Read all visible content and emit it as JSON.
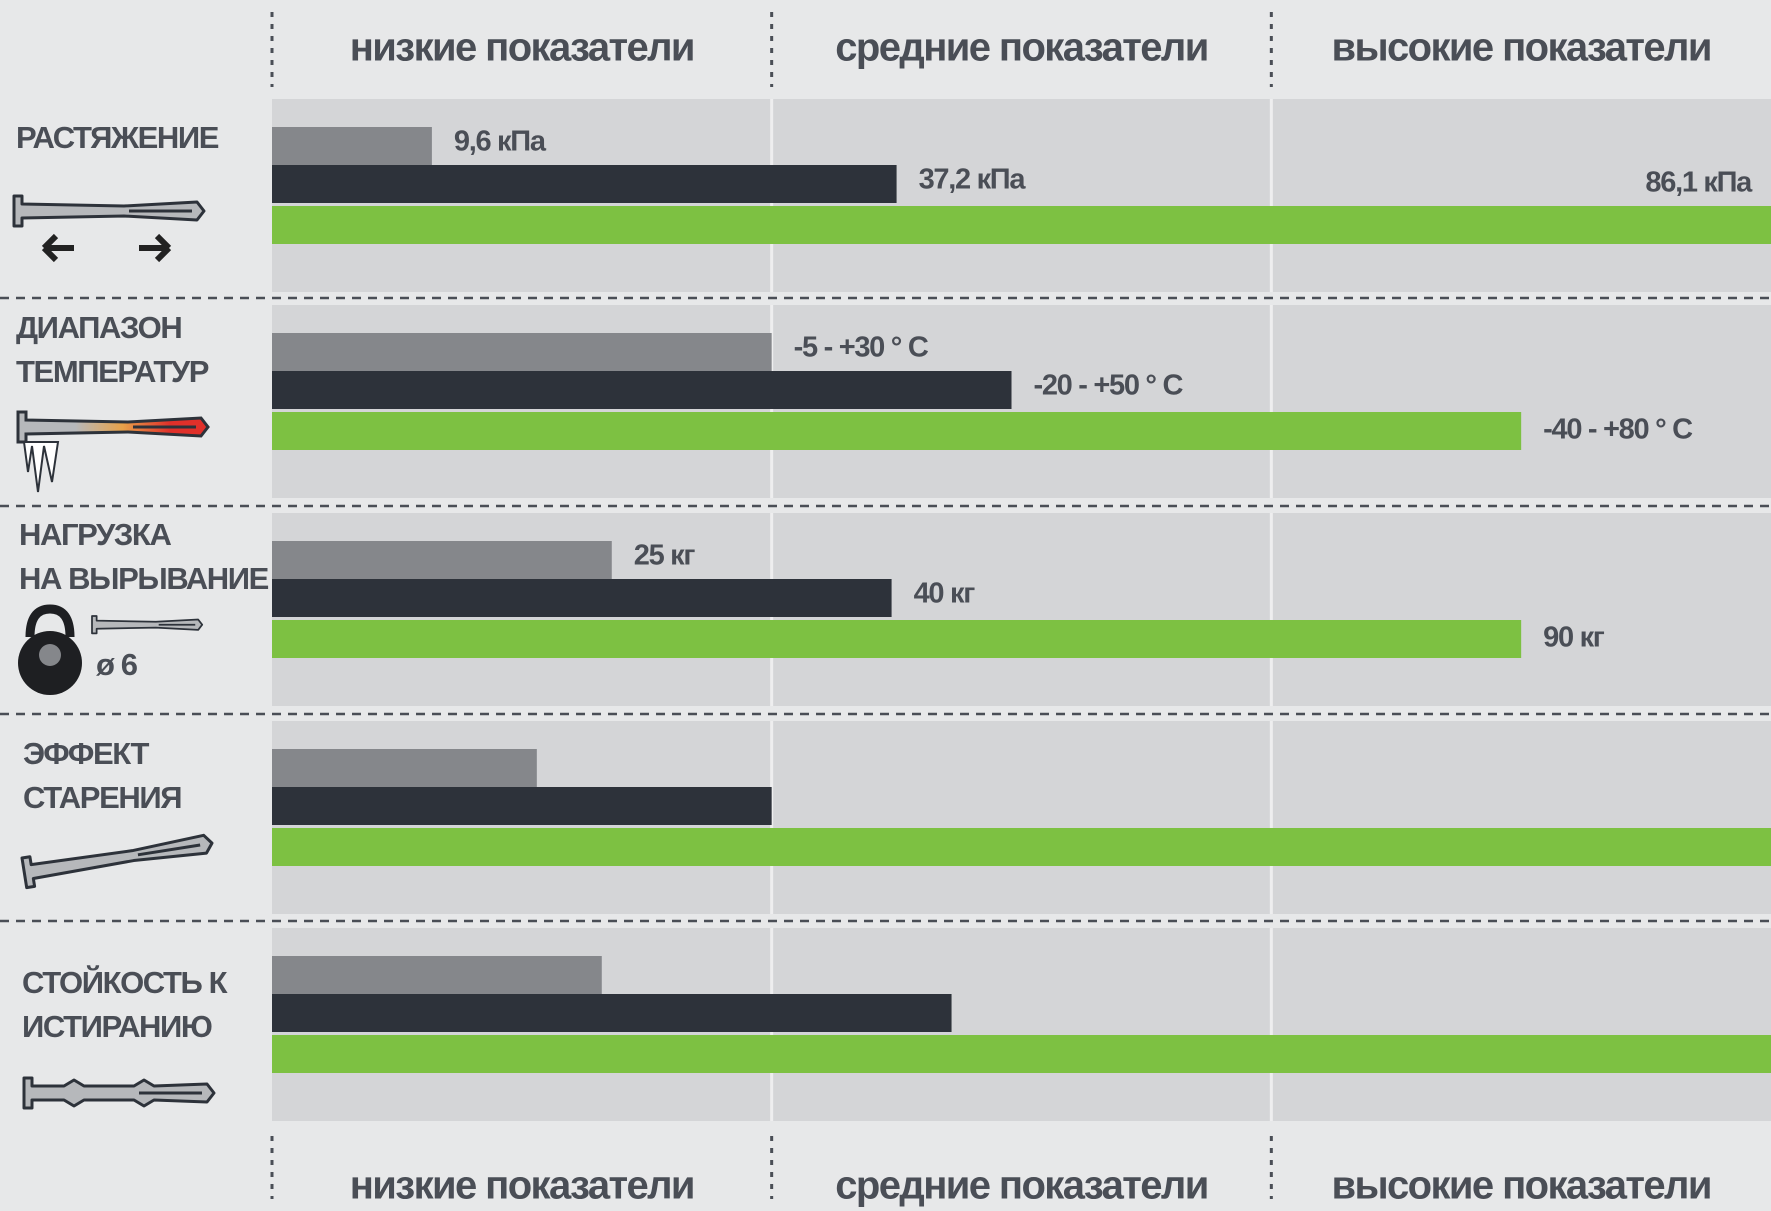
{
  "chart_data": {
    "type": "bar",
    "orientation": "horizontal",
    "zones": [
      "низкие показатели",
      "средние показатели",
      "высокие показатели"
    ],
    "categories": [
      "РАСТЯЖЕНИЕ",
      "ДИАПАЗОН ТЕМПЕРАТУР",
      "НАГРУЗКА НА ВЫРЫВАНИЕ",
      "ЭФФЕКТ СТАРЕНИЯ",
      "СТОЙКОСТЬ К ИСТИРАНИЮ"
    ],
    "xlim": [
      0,
      3
    ],
    "series": [
      {
        "color": "#85878b",
        "values": [
          0.32,
          1.0,
          0.68,
          0.53,
          0.66
        ],
        "labels": [
          "9,6 кПа",
          "-5 - +30 ° C",
          "25 кг",
          null,
          null
        ]
      },
      {
        "color": "#2d323a",
        "values": [
          1.25,
          1.48,
          1.24,
          1.0,
          1.36
        ],
        "labels": [
          "37,2 кПа",
          "-20 - +50 ° C",
          "40 кг",
          null,
          null
        ]
      },
      {
        "color": "#7dc142",
        "values": [
          3.0,
          2.5,
          2.5,
          3.0,
          3.0
        ],
        "labels": [
          "86,1 кПа",
          "-40 - +80 ° C",
          "90 кг",
          null,
          null
        ]
      }
    ],
    "annotation": "ø 6"
  }
}
